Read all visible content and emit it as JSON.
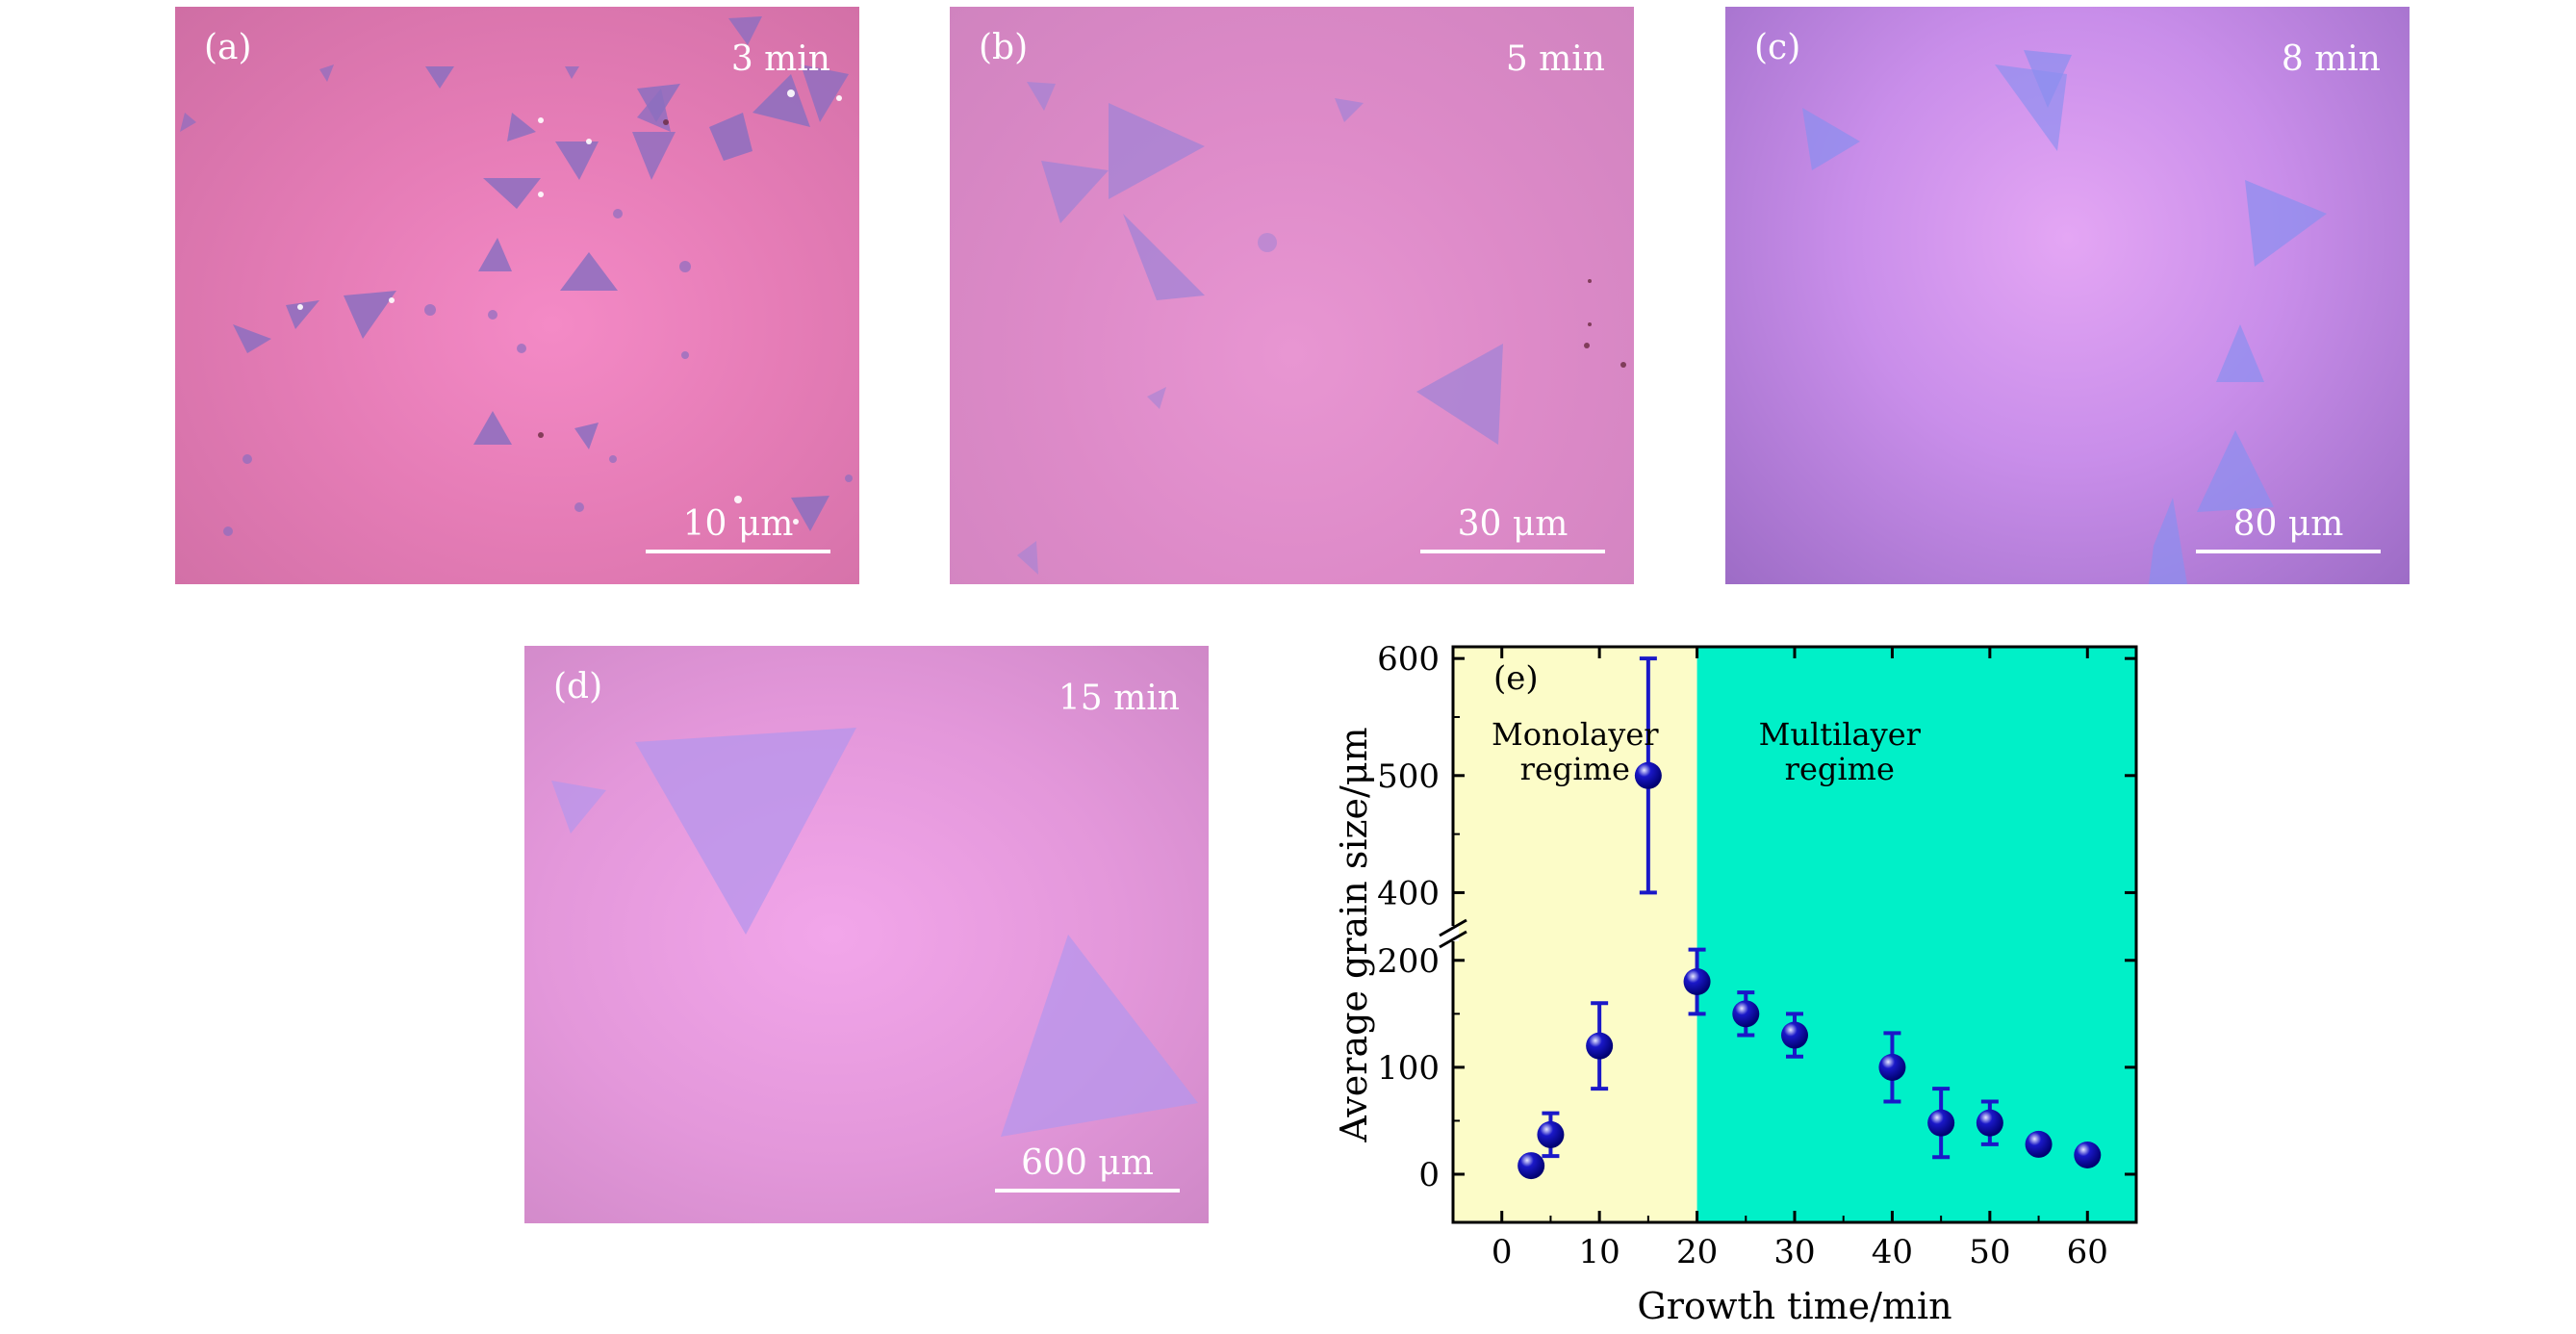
{
  "panels": [
    {
      "id": "a",
      "label": "(a)",
      "time": "3 min",
      "scale": "10 μm"
    },
    {
      "id": "b",
      "label": "(b)",
      "time": "5 min",
      "scale": "30 μm"
    },
    {
      "id": "c",
      "label": "(c)",
      "time": "8 min",
      "scale": "80 μm"
    },
    {
      "id": "d",
      "label": "(d)",
      "time": "15 min",
      "scale": "600 μm"
    }
  ],
  "colors": {
    "flake_a": "#8c6ec0",
    "flake_b": "#a283d6",
    "flake_c": "#8a8ff0",
    "flake_d": "#b596ec",
    "marker": "#1a18c8",
    "monolayer_bg": "#fcfcc8",
    "multilayer_bg": "#00f0c8"
  },
  "chart_data": {
    "type": "scatter",
    "panel_label": "(e)",
    "xlabel": "Growth time/min",
    "ylabel": "Average grain size/μm",
    "xlim": [
      -5,
      65
    ],
    "xticks": [
      0,
      10,
      20,
      30,
      40,
      50,
      60
    ],
    "ylim_lower": [
      -45,
      225
    ],
    "ylim_upper": [
      365,
      610
    ],
    "yticks_lower": [
      0,
      100,
      200
    ],
    "yticks_upper": [
      400,
      500,
      600
    ],
    "axis_break": "between 200 and 400",
    "regions": [
      {
        "label_line1": "Monolayer",
        "label_line2": "regime",
        "x_range": [
          -5,
          20
        ],
        "color": "#fcfcc8"
      },
      {
        "label_line1": "Multilayer",
        "label_line2": "regime",
        "x_range": [
          20,
          65
        ],
        "color": "#00f0c8"
      }
    ],
    "points": [
      {
        "x": 3,
        "y": 8,
        "err": 0
      },
      {
        "x": 5,
        "y": 37,
        "err": 20
      },
      {
        "x": 10,
        "y": 120,
        "err": 40
      },
      {
        "x": 15,
        "y": 500,
        "err": 100
      },
      {
        "x": 20,
        "y": 180,
        "err": 30
      },
      {
        "x": 25,
        "y": 150,
        "err": 20
      },
      {
        "x": 30,
        "y": 130,
        "err": 20
      },
      {
        "x": 40,
        "y": 100,
        "err": 32
      },
      {
        "x": 45,
        "y": 48,
        "err": 32
      },
      {
        "x": 50,
        "y": 48,
        "err": 20
      },
      {
        "x": 55,
        "y": 28,
        "err": 0
      },
      {
        "x": 60,
        "y": 18,
        "err": 0
      }
    ]
  }
}
